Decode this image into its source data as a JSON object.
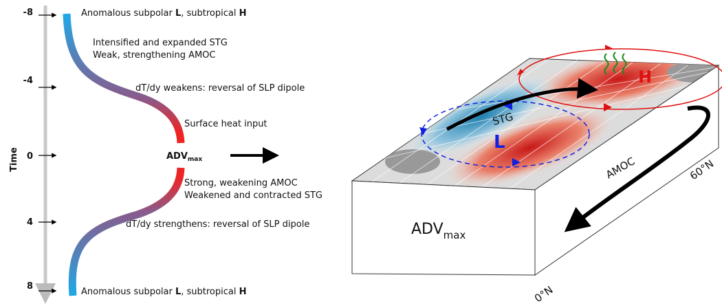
{
  "time_axis": {
    "label": "Time",
    "ticks": [
      "-8",
      "-4",
      "0",
      "4",
      "8"
    ]
  },
  "timeline": {
    "top": [
      "Anomalous subpolar ",
      "L",
      ", subtropical ",
      "H"
    ],
    "stg_amoc_early": [
      "Intensified and expanded STG",
      "Weak, strengthening AMOC"
    ],
    "weakens": "dT/dy weakens: reversal of SLP dipole",
    "heat": "Surface heat input",
    "adv": {
      "main": "ADV",
      "sub": "max"
    },
    "stg_amoc_late": [
      "Strong, weakening AMOC",
      "Weakened and contracted STG"
    ],
    "strengthens": "dT/dy strengthens: reversal of SLP dipole",
    "bottom": [
      "Anomalous subpolar ",
      "L",
      ", subtropical ",
      "H"
    ]
  },
  "box": {
    "stg": "STG",
    "low": "L",
    "high": "H",
    "amoc": "AMOC",
    "lat_north": "60°N",
    "lat_south": "0°N",
    "adv": {
      "main": "ADV",
      "sub": "max"
    }
  }
}
